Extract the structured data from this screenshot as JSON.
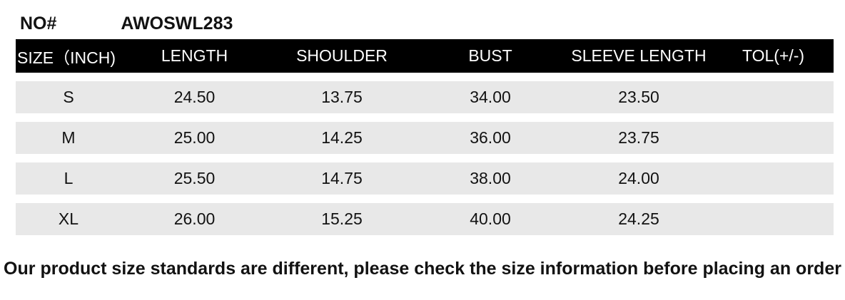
{
  "header": {
    "no_label": "NO#",
    "model_number": "AWOSWL283"
  },
  "chart_data": {
    "type": "table",
    "unit": "INCH",
    "columns": [
      "SIZE（INCH)",
      "LENGTH",
      "SHOULDER",
      "BUST",
      "SLEEVE LENGTH",
      "TOL(+/-)"
    ],
    "rows": [
      [
        "S",
        "24.50",
        "13.75",
        "34.00",
        "23.50",
        ""
      ],
      [
        "M",
        "25.00",
        "14.25",
        "36.00",
        "23.75",
        ""
      ],
      [
        "L",
        "25.50",
        "14.75",
        "38.00",
        "24.00",
        ""
      ],
      [
        "XL",
        "26.00",
        "15.25",
        "40.00",
        "24.25",
        ""
      ]
    ]
  },
  "footer": {
    "note": "Our product size standards are different, please check the size information before placing an order"
  },
  "colors": {
    "header_bg": "#000000",
    "header_text": "#ffffff",
    "row_bg": "#e8e8e8",
    "text": "#121212",
    "background": "#ffffff"
  }
}
